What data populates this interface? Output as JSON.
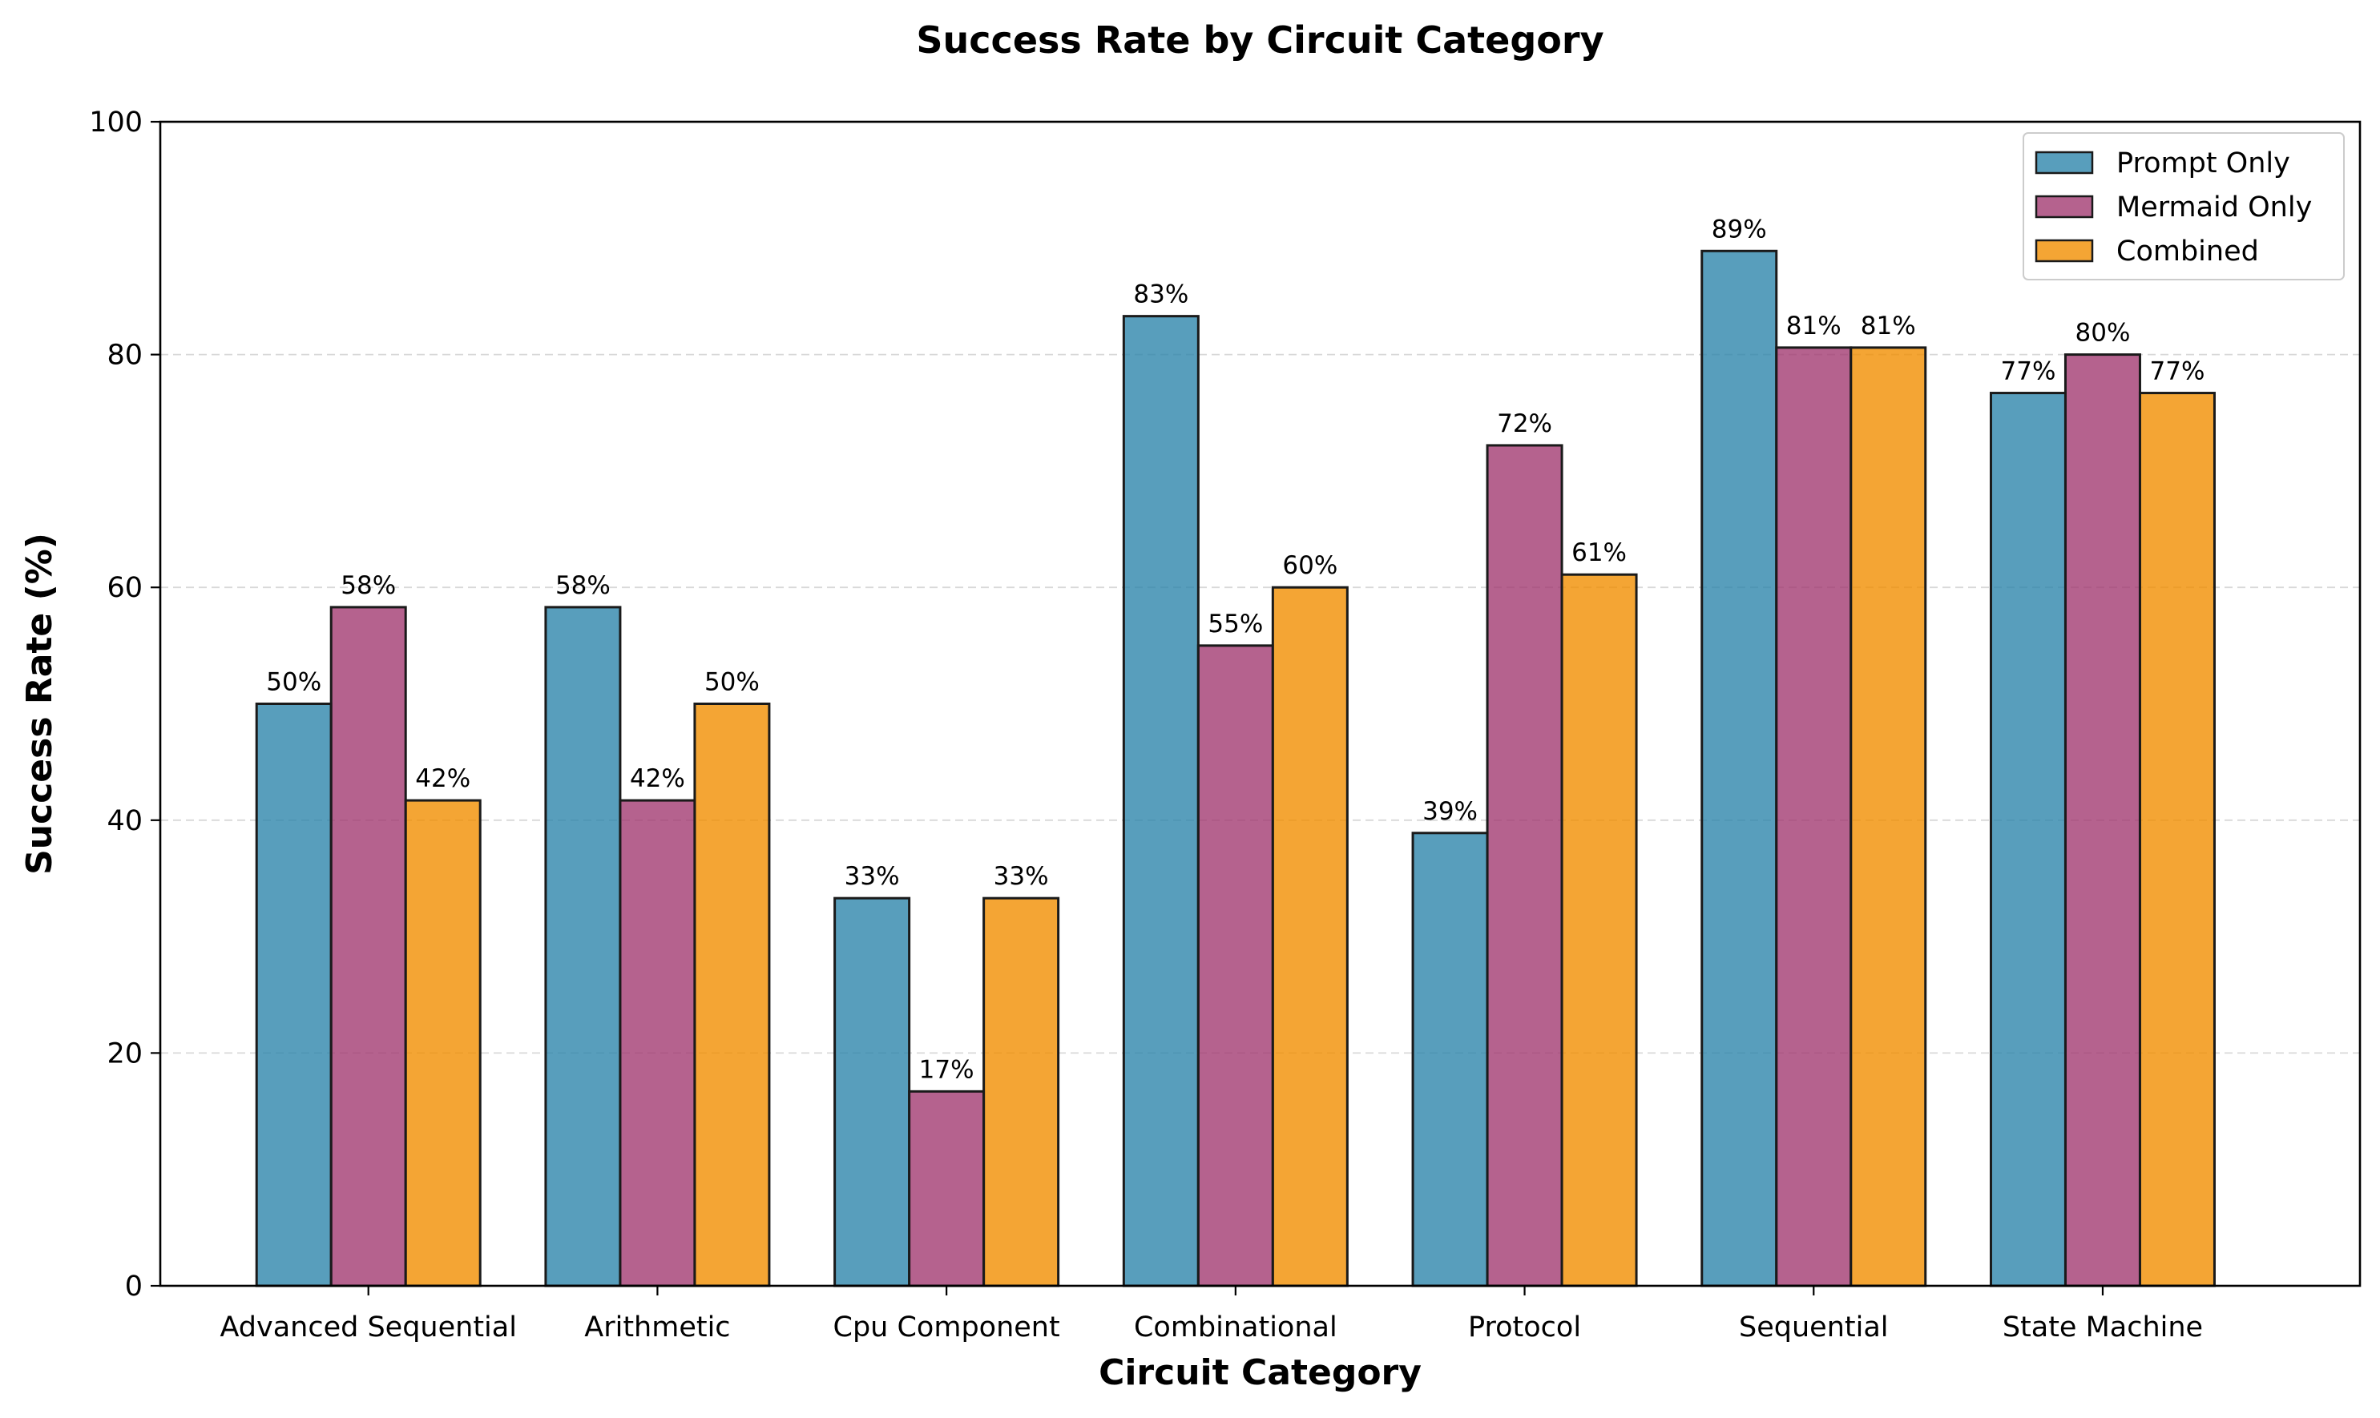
{
  "chart_data": {
    "type": "bar",
    "title": "Success Rate by Circuit Category",
    "xlabel": "Circuit Category",
    "ylabel": "Success Rate (%)",
    "ylim": [
      0,
      100
    ],
    "yticks": [
      0,
      20,
      40,
      60,
      80,
      100
    ],
    "grid": "y-dashed",
    "legend_position": "top-right",
    "categories": [
      "Advanced Sequential",
      "Arithmetic",
      "Cpu Component",
      "Combinational",
      "Protocol",
      "Sequential",
      "State Machine"
    ],
    "series": [
      {
        "name": "Prompt Only",
        "color": "#2E86AB",
        "values": [
          50,
          58.3,
          33.3,
          83.3,
          38.9,
          88.9,
          76.7
        ],
        "labels": [
          "50%",
          "58%",
          "33%",
          "83%",
          "39%",
          "89%",
          "77%"
        ]
      },
      {
        "name": "Mermaid Only",
        "color": "#A23B72",
        "values": [
          58.3,
          41.7,
          16.7,
          55,
          72.2,
          80.6,
          80
        ],
        "labels": [
          "58%",
          "42%",
          "17%",
          "55%",
          "72%",
          "81%",
          "80%"
        ]
      },
      {
        "name": "Combined",
        "color": "#F18F01",
        "values": [
          41.7,
          50,
          33.3,
          60,
          61.1,
          80.6,
          76.7
        ],
        "labels": [
          "42%",
          "50%",
          "33%",
          "60%",
          "61%",
          "81%",
          "77%"
        ]
      }
    ]
  }
}
